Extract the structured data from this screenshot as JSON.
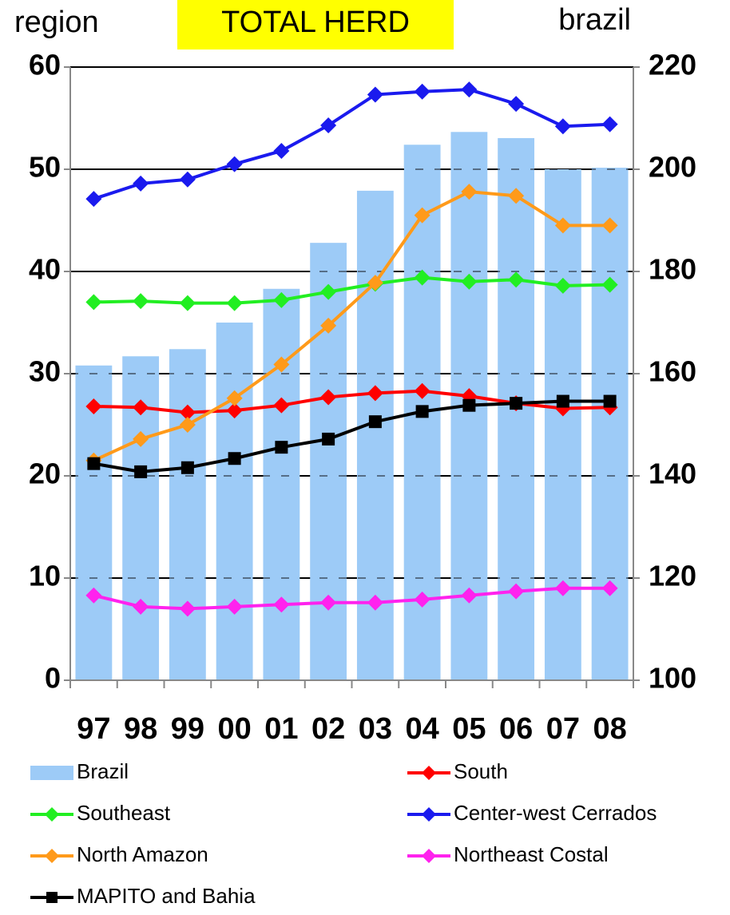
{
  "chart_data": {
    "type": "line",
    "title": "TOTAL HERD",
    "ylabel": "region",
    "y2label": "brazil",
    "categories": [
      "97",
      "98",
      "99",
      "00",
      "01",
      "02",
      "03",
      "04",
      "05",
      "06",
      "07",
      "08"
    ],
    "ylim": [
      0,
      60
    ],
    "yticks": [
      0,
      10,
      20,
      30,
      40,
      50,
      60
    ],
    "y2lim": [
      100,
      220
    ],
    "y2ticks": [
      100,
      120,
      140,
      160,
      180,
      200,
      220
    ],
    "grid": true,
    "series": [
      {
        "name": "Brazil",
        "type": "bar",
        "axis": "y2",
        "color": "#9dcbf7",
        "values": [
          161.6,
          163.4,
          164.8,
          170.0,
          176.6,
          185.6,
          195.8,
          204.8,
          207.3,
          206.1,
          200.0,
          200.3
        ]
      },
      {
        "name": "South",
        "marker": "diamond",
        "color": "#ff0000",
        "values": [
          26.8,
          26.7,
          26.2,
          26.4,
          26.9,
          27.7,
          28.1,
          28.3,
          27.8,
          27.1,
          26.6,
          26.7
        ]
      },
      {
        "name": "Southeast",
        "marker": "diamond",
        "color": "#22ee22",
        "values": [
          37.0,
          37.1,
          36.9,
          36.9,
          37.2,
          38.0,
          38.8,
          39.4,
          39.0,
          39.2,
          38.6,
          38.7
        ]
      },
      {
        "name": "Center-west Cerrados",
        "marker": "diamond",
        "color": "#1a1aee",
        "values": [
          47.1,
          48.6,
          49.0,
          50.5,
          51.8,
          54.3,
          57.3,
          57.6,
          57.8,
          56.4,
          54.2,
          54.4
        ]
      },
      {
        "name": "North Amazon",
        "marker": "diamond",
        "color": "#ff9a1a",
        "values": [
          21.5,
          23.6,
          25.0,
          27.6,
          30.9,
          34.7,
          38.9,
          45.5,
          47.8,
          47.4,
          44.5,
          44.5
        ]
      },
      {
        "name": "Northeast Costal",
        "marker": "diamond",
        "color": "#ff22ee",
        "values": [
          8.3,
          7.2,
          7.0,
          7.2,
          7.4,
          7.6,
          7.6,
          7.9,
          8.3,
          8.7,
          9.0,
          9.0
        ]
      },
      {
        "name": "MAPITO and Bahia",
        "marker": "square",
        "color": "#000000",
        "values": [
          21.2,
          20.4,
          20.8,
          21.7,
          22.8,
          23.6,
          25.3,
          26.3,
          26.9,
          27.1,
          27.3,
          27.3
        ]
      }
    ]
  }
}
